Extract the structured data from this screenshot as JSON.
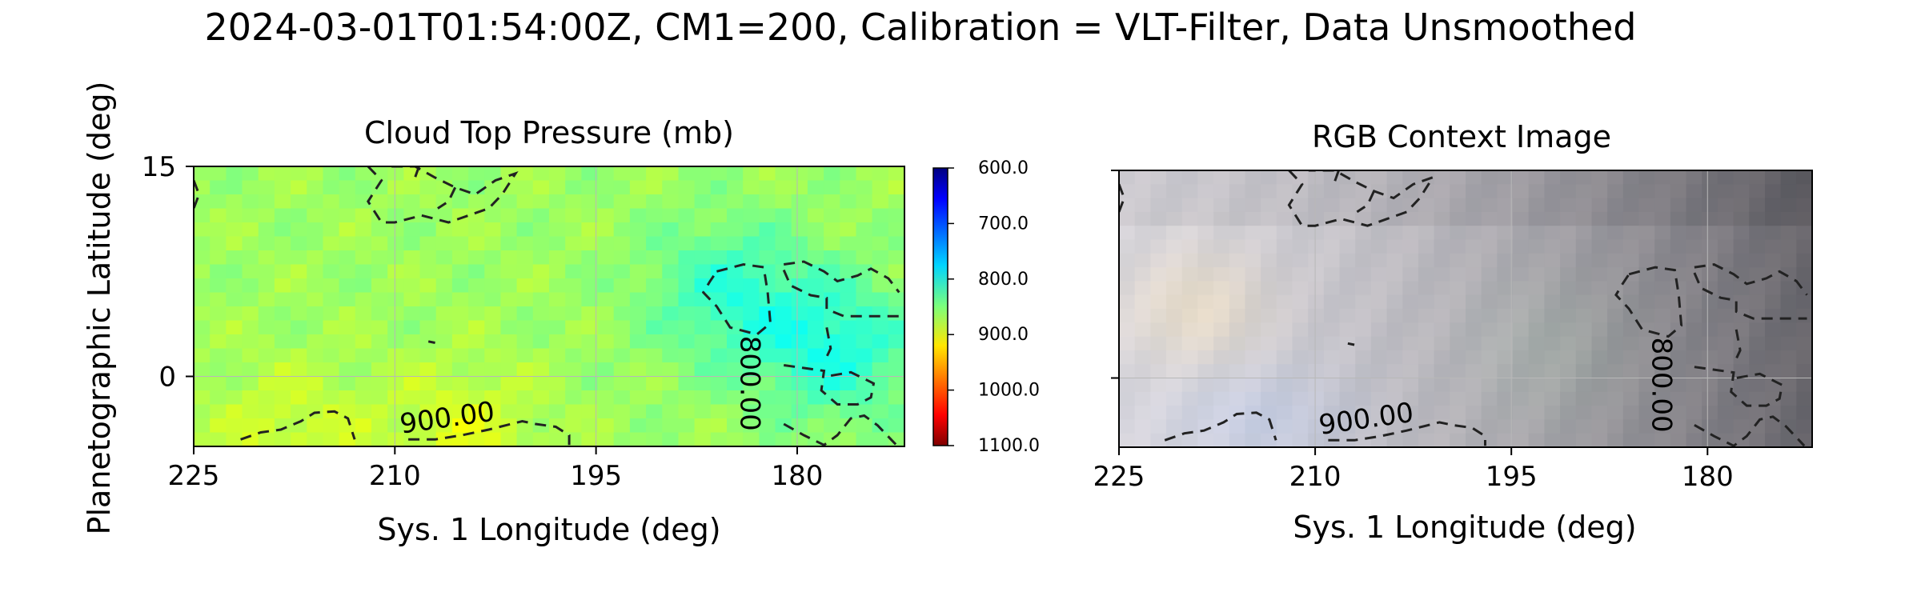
{
  "figure": {
    "title": "2024-03-01T01:54:00Z, CM1=200, Calibration = VLT-Filter, Data Unsmoothed",
    "ylabel": "Planetographic Latitude (deg)"
  },
  "chart_data": [
    {
      "type": "heatmap",
      "title": "Cloud Top Pressure (mb)",
      "xlabel": "Sys. 1 Longitude (deg)",
      "xlim": [
        225,
        172
      ],
      "ylim": [
        -5,
        15
      ],
      "xticks": [
        "225",
        "210",
        "195",
        "180"
      ],
      "yticks": [
        "15",
        "0"
      ],
      "grid": true,
      "colormap": "jet",
      "colorbar": {
        "range": [
          600,
          1100
        ],
        "ticks": [
          "600.0",
          "700.0",
          "800.0",
          "900.0",
          "1000.0",
          "1100.0"
        ]
      },
      "pressure_field": {
        "background_mb": 865,
        "features": [
          {
            "kind": "low-pressure",
            "lon": 177,
            "lat": 2,
            "value_mb": 805
          },
          {
            "kind": "low-pressure",
            "lon": 185,
            "lat": 6,
            "value_mb": 815
          },
          {
            "kind": "high-pressure",
            "lon": 205,
            "lat": -4,
            "value_mb": 895
          },
          {
            "kind": "high-pressure",
            "lon": 218,
            "lat": -4,
            "value_mb": 890
          }
        ]
      },
      "contours": [
        {
          "level": 900,
          "label": "900.00"
        },
        {
          "level": 800,
          "label": "800.00"
        }
      ]
    },
    {
      "type": "image",
      "title": "RGB Context Image",
      "xlabel": "Sys. 1 Longitude (deg)",
      "xlim": [
        225,
        172
      ],
      "ylim": [
        -5,
        15
      ],
      "xticks": [
        "225",
        "210",
        "195",
        "180"
      ],
      "grid": true
    }
  ]
}
